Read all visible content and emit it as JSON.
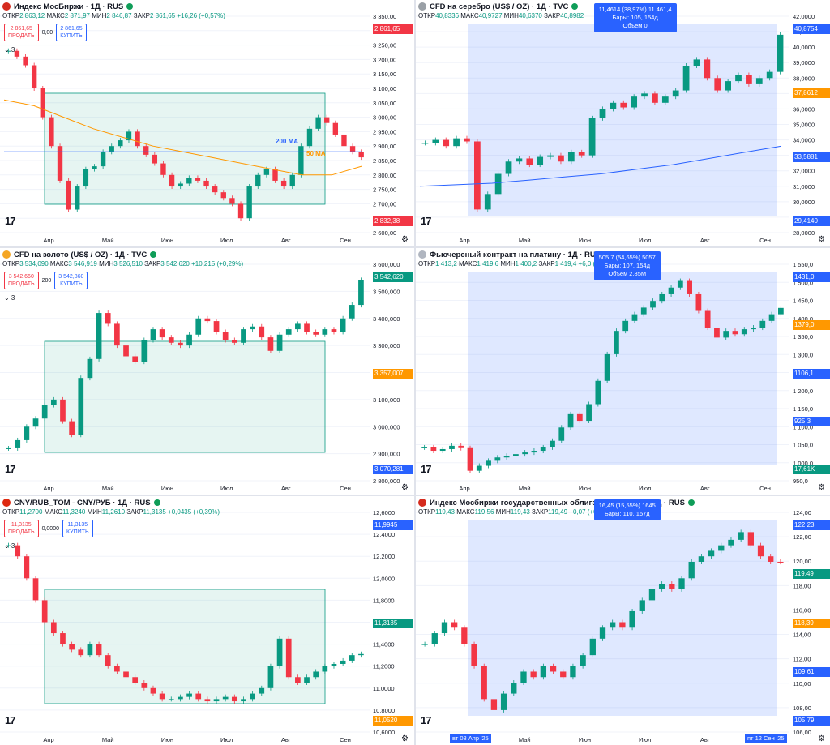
{
  "panes": [
    {
      "id": "imoex",
      "title": "Индекс МосБиржи · 1Д · RUS",
      "flag": "ru",
      "ohlc": {
        "o": "2 863,12",
        "h": "2 871,97",
        "l": "2 846,87",
        "c": "2 861,65",
        "chg": "+16,26 (+0,57%)"
      },
      "trade": {
        "sell_price": "2 861,65",
        "sell_label": "ПРОДАТЬ",
        "spread": "0,00",
        "buy_price": "2 861,65",
        "buy_label": "КУПИТЬ"
      },
      "collapse_label": "3",
      "ma_labels": [
        "200 MA",
        "50 MA"
      ],
      "price_labels": [
        {
          "text": "2 861,65",
          "color": "#f23645"
        },
        {
          "text": "2 832,38",
          "color": "#f23645"
        }
      ],
      "chart_data": {
        "type": "line",
        "title": "Индекс МосБиржи · 1Д · RUS",
        "ylim": [
          2600,
          3350
        ],
        "y_ticks": [
          "3 350,00",
          "3 300,00",
          "3 250,00",
          "3 200,00",
          "3 150,00",
          "3 100,00",
          "3 050,00",
          "3 000,00",
          "2 950,00",
          "2 900,00",
          "2 850,00",
          "2 800,00",
          "2 750,00",
          "2 700,00",
          "2 650,00",
          "2 600,00"
        ],
        "x_ticks": [
          "Апр",
          "Май",
          "Июн",
          "Июл",
          "Авг",
          "Сен"
        ],
        "series": [
          {
            "name": "",
            "values": [
              3230,
              3210,
              3180,
              3100,
              3000,
              2900,
              2780,
              2680,
              2760,
              2820,
              2830,
              2880,
              2900,
              2920,
              2950,
              2900,
              2870,
              2840,
              2800,
              2760,
              2770,
              2790,
              2780,
              2760,
              2740,
              2720,
              2700,
              2650,
              2760,
              2800,
              2820,
              2780,
              2760,
              2800,
              2900,
              2960,
              3000,
              2980,
              2940,
              2900,
              2880,
              2861
            ]
          },
          {
            "name": "200 MA",
            "values": [
              2880,
              2880,
              2880,
              2880,
              2880,
              2880,
              2880,
              2880,
              2880,
              2880,
              2880,
              2880,
              2880
            ]
          },
          {
            "name": "50 MA",
            "values": [
              3060,
              3040,
              3000,
              2960,
              2930,
              2900,
              2880,
              2860,
              2840,
              2820,
              2800,
              2800,
              2830
            ]
          }
        ]
      }
    },
    {
      "id": "silver",
      "title": "CFD на серебро (US$ / OZ) · 1Д · TVC",
      "flag": "silver",
      "ohlc": {
        "o": "40,8336",
        "h": "40,9727",
        "l": "40,6370",
        "c": "40,8982",
        "chg": ""
      },
      "infobox": [
        "11,4614 (38,97%) 11 461,4",
        "Бары: 105, 154д",
        "Объём 0"
      ],
      "price_labels": [
        {
          "text": "40,8754",
          "color": "#2962ff"
        },
        {
          "text": "37,8612",
          "color": "#ff9800"
        },
        {
          "text": "33,5881",
          "color": "#2962ff"
        },
        {
          "text": "29,4140",
          "color": "#2962ff"
        }
      ],
      "chart_data": {
        "type": "line",
        "title": "CFD на серебро (US$ / OZ) · 1Д · TVC",
        "ylim": [
          28,
          42
        ],
        "y_ticks": [
          "42,0000",
          "41,0000",
          "40,0000",
          "39,0000",
          "38,0000",
          "37,0000",
          "36,0000",
          "35,0000",
          "34,0000",
          "33,0000",
          "32,0000",
          "31,0000",
          "30,0000",
          "29,0000",
          "28,0000"
        ],
        "x_ticks": [
          "Апр",
          "Май",
          "Июн",
          "Июл",
          "Авг",
          "Сен"
        ],
        "series": [
          {
            "name": "",
            "values": [
              33.8,
              34.0,
              33.6,
              34.1,
              33.9,
              29.5,
              30.5,
              31.8,
              32.6,
              32.8,
              32.4,
              32.9,
              33.0,
              32.6,
              33.2,
              33.0,
              35.4,
              36.0,
              36.4,
              36.1,
              36.8,
              37.0,
              36.4,
              36.8,
              37.2,
              38.8,
              39.2,
              38.0,
              37.2,
              37.8,
              38.2,
              37.6,
              38.0,
              38.4,
              40.8
            ]
          },
          {
            "name": "",
            "values": [
              31.0,
              31.1,
              31.2,
              31.4,
              31.6,
              31.8,
              32.1,
              32.4,
              32.8,
              33.2,
              33.6
            ]
          }
        ]
      }
    },
    {
      "id": "gold",
      "title": "CFD на золото (US$ / OZ) · 1Д · TVC",
      "flag": "gold",
      "ohlc": {
        "o": "3 534,090",
        "h": "3 546,919",
        "l": "3 526,510",
        "c": "3 542,620",
        "chg": "+10,215 (+0,29%)"
      },
      "trade": {
        "sell_price": "3 542,660",
        "sell_label": "ПРОДАТЬ",
        "spread": "200",
        "buy_price": "3 542,860",
        "buy_label": "КУПИТЬ"
      },
      "collapse_label": "3",
      "price_labels": [
        {
          "text": "3 542,620",
          "color": "#089981"
        },
        {
          "text": "3 357,007",
          "color": "#ff9800"
        },
        {
          "text": "3 070,281",
          "color": "#2962ff"
        }
      ],
      "chart_data": {
        "type": "line",
        "title": "CFD на золото (US$ / OZ) · 1Д · TVC",
        "ylim": [
          2800,
          3600
        ],
        "y_ticks": [
          "3 600,000",
          "3 500,000",
          "3 400,000",
          "3 300,000",
          "3 200,000",
          "3 100,000",
          "3 000,000",
          "2 900,000",
          "2 800,000"
        ],
        "x_ticks": [
          "Апр",
          "Май",
          "Июн",
          "Июл",
          "Авг",
          "Сен"
        ],
        "series": [
          {
            "name": "",
            "values": [
              2920,
              2950,
              3000,
              3030,
              3080,
              3100,
              3020,
              2970,
              3180,
              3250,
              3420,
              3380,
              3300,
              3260,
              3240,
              3320,
              3360,
              3330,
              3310,
              3300,
              3340,
              3400,
              3390,
              3350,
              3320,
              3310,
              3360,
              3370,
              3330,
              3280,
              3340,
              3360,
              3380,
              3350,
              3340,
              3360,
              3350,
              3400,
              3450,
              3542
            ]
          }
        ]
      }
    },
    {
      "id": "platinum",
      "title": "Фьючерсный контракт на платину · 1Д · RUS",
      "flag": "platinum",
      "ohlc": {
        "o": "1 413,2",
        "h": "1 419,6",
        "l": "1 400,2",
        "c": "1 419,4",
        "chg": "+6,0 (+0,42%)"
      },
      "infobox": [
        "505,7 (54,65%) 5057",
        "Бары: 107, 154д",
        "Объём 2,85M"
      ],
      "price_labels": [
        {
          "text": "1431,0",
          "color": "#2962ff"
        },
        {
          "text": "1379,0",
          "color": "#ff9800"
        },
        {
          "text": "1106,1",
          "color": "#2962ff"
        },
        {
          "text": "925,3",
          "color": "#2962ff"
        },
        {
          "text": "17,61K",
          "color": "#089981"
        }
      ],
      "chart_data": {
        "type": "line",
        "title": "Фьючерсный контракт на платину · 1Д · RUS",
        "ylim": [
          900,
          1550
        ],
        "y_ticks": [
          "1 550,0",
          "1 500,0",
          "1 450,0",
          "1 400,0",
          "1 350,0",
          "1 300,0",
          "1 250,0",
          "1 200,0",
          "1 150,0",
          "1 100,0",
          "1 050,0",
          "1 000,0",
          "950,0"
        ],
        "x_ticks": [
          "Апр",
          "Май",
          "Июн",
          "Июл",
          "Авг",
          "Сен"
        ],
        "series": [
          {
            "name": "",
            "values": [
              1000,
              990,
              995,
              1005,
              998,
              930,
              945,
              960,
              970,
              975,
              980,
              985,
              990,
              1000,
              1020,
              1060,
              1100,
              1080,
              1130,
              1200,
              1280,
              1350,
              1380,
              1400,
              1420,
              1440,
              1460,
              1480,
              1500,
              1460,
              1410,
              1360,
              1330,
              1350,
              1340,
              1355,
              1360,
              1380,
              1400,
              1419
            ]
          }
        ]
      }
    },
    {
      "id": "cnyrub",
      "title": "CNY/RUB_TOM - CNY/РУБ · 1Д · RUS",
      "flag": "cny",
      "ohlc": {
        "o": "11,2700",
        "h": "11,3240",
        "l": "11,2610",
        "c": "11,3135",
        "chg": "+0,0435 (+0,39%)"
      },
      "trade": {
        "sell_price": "11,3135",
        "sell_label": "ПРОДАТЬ",
        "spread": "0,0000",
        "buy_price": "11,3135",
        "buy_label": "КУПИТЬ"
      },
      "collapse_label": "3",
      "price_labels": [
        {
          "text": "11,9945",
          "color": "#2962ff"
        },
        {
          "text": "11,3135",
          "color": "#089981"
        },
        {
          "text": "11,0520",
          "color": "#ff9800"
        }
      ],
      "chart_data": {
        "type": "line",
        "title": "CNY/RUB_TOM - CNY/РУБ · 1Д · RUS",
        "ylim": [
          10.6,
          12.6
        ],
        "y_ticks": [
          "12,6000",
          "12,4000",
          "12,2000",
          "12,0000",
          "11,8000",
          "11,6000",
          "11,4000",
          "11,2000",
          "11,0000",
          "10,8000",
          "10,6000"
        ],
        "x_ticks": [
          "Апр",
          "Май",
          "Июн",
          "Июл",
          "Авг",
          "Сен"
        ],
        "series": [
          {
            "name": "",
            "values": [
              12.3,
              12.2,
              12.0,
              11.8,
              11.6,
              11.5,
              11.4,
              11.35,
              11.3,
              11.4,
              11.3,
              11.2,
              11.15,
              11.1,
              11.05,
              11.0,
              10.95,
              10.9,
              10.9,
              10.92,
              10.95,
              10.9,
              10.88,
              10.9,
              10.92,
              10.88,
              10.9,
              10.95,
              11.0,
              11.2,
              11.45,
              11.1,
              11.05,
              11.1,
              11.15,
              11.2,
              11.22,
              11.25,
              11.3,
              11.31
            ]
          }
        ]
      }
    },
    {
      "id": "rgbi",
      "title": "Индекс Мосбиржи государственных облигаций ценовой · 1Д · RUS",
      "flag": "ru",
      "ohlc": {
        "o": "119,43",
        "h": "119,56",
        "l": "119,43",
        "c": "119,49",
        "chg": "+0,07 (+0,06%)"
      },
      "infobox": [
        "16,45 (15,55%) 1645",
        "Бары: 110, 157д"
      ],
      "date_labels": [
        "вт 08 Апр '25",
        "пт 12 Сен '25"
      ],
      "price_labels": [
        {
          "text": "122,23",
          "color": "#2962ff"
        },
        {
          "text": "119,49",
          "color": "#089981"
        },
        {
          "text": "118,39",
          "color": "#ff9800"
        },
        {
          "text": "109,61",
          "color": "#2962ff"
        },
        {
          "text": "105,79",
          "color": "#2962ff"
        }
      ],
      "chart_data": {
        "type": "line",
        "title": "Индекс Мосбиржи государственных облигаций ценовой · 1Д · RUS",
        "ylim": [
          104,
          124
        ],
        "y_ticks": [
          "124,00",
          "122,00",
          "120,00",
          "118,00",
          "116,00",
          "114,00",
          "112,00",
          "110,00",
          "108,00",
          "106,00"
        ],
        "x_ticks": [
          "Апр",
          "Май",
          "Июн",
          "Июл",
          "Авг",
          "Сен"
        ],
        "series": [
          {
            "name": "",
            "values": [
              112,
              113,
              114,
              113.5,
              112,
              110,
              107,
              106,
              107.5,
              108.5,
              109.5,
              109,
              110,
              109.5,
              109,
              110,
              111,
              112.5,
              113.5,
              114,
              113.5,
              115,
              116,
              117,
              117.5,
              117,
              118,
              119.5,
              120,
              120.5,
              121,
              121.5,
              122.2,
              121,
              120,
              119.5,
              119.49
            ]
          }
        ]
      }
    }
  ]
}
